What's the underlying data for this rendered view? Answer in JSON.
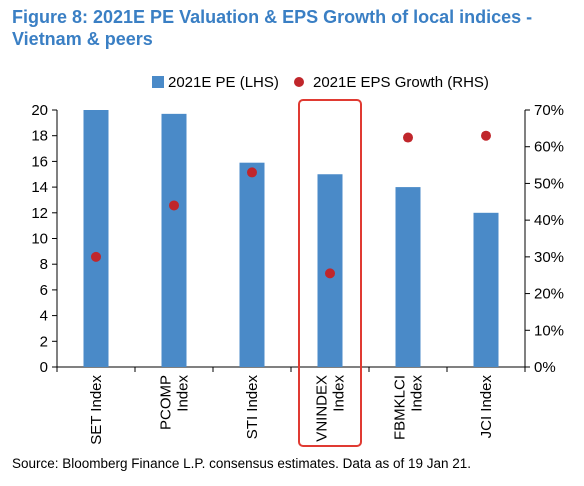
{
  "title": "Figure 8: 2021E PE Valuation & EPS Growth of local indices - Vietnam & peers",
  "source": "Source: Bloomberg Finance L.P. consensus estimates. Data as of 19 Jan 21.",
  "colors": {
    "bar": "#4a8ac8",
    "dot": "#c0262b",
    "highlight": "#e03a32",
    "title": "#3a7fc4"
  },
  "chart_data": {
    "type": "bar",
    "categories": [
      [
        "SET Index"
      ],
      [
        "PCOMP",
        "Index"
      ],
      [
        "STI Index"
      ],
      [
        "VNINDEX",
        "Index"
      ],
      [
        "FBMKLCI",
        "Index"
      ],
      [
        "JCI Index"
      ]
    ],
    "series": [
      {
        "name": "2021E PE (LHS)",
        "type": "bar",
        "axis": "left",
        "values": [
          20.0,
          19.7,
          15.9,
          15.0,
          14.0,
          12.0
        ]
      },
      {
        "name": "2021E EPS Growth (RHS)",
        "type": "scatter",
        "axis": "right",
        "values": [
          30.0,
          44.0,
          53.0,
          25.5,
          62.5,
          63.0
        ]
      }
    ],
    "left_axis": {
      "ylim": [
        0,
        20
      ],
      "ticks": [
        "0",
        "2",
        "4",
        "6",
        "8",
        "10",
        "12",
        "14",
        "16",
        "18",
        "20"
      ]
    },
    "right_axis": {
      "ylim": [
        0,
        70
      ],
      "ticks": [
        "0%",
        "10%",
        "20%",
        "30%",
        "40%",
        "50%",
        "60%",
        "70%"
      ]
    },
    "highlighted_category": "VNINDEX Index",
    "legend_position": "top",
    "grid": false
  }
}
